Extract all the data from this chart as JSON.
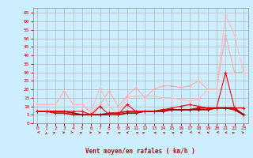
{
  "title": "",
  "xlabel": "Vent moyen/en rafales ( km/h )",
  "bg_color": "#cceeff",
  "grid_color": "#aaaaaa",
  "xlim": [
    -0.5,
    23.5
  ],
  "ylim": [
    0,
    68
  ],
  "yticks": [
    0,
    5,
    10,
    15,
    20,
    25,
    30,
    35,
    40,
    45,
    50,
    55,
    60,
    65
  ],
  "xticks": [
    0,
    1,
    2,
    3,
    4,
    5,
    6,
    7,
    8,
    9,
    10,
    11,
    12,
    13,
    14,
    15,
    16,
    17,
    18,
    19,
    20,
    21,
    22,
    23
  ],
  "series": [
    {
      "x": [
        0,
        1,
        2,
        3,
        4,
        5,
        6,
        7,
        8,
        9,
        10,
        11,
        12,
        13,
        14,
        15,
        16,
        17,
        18,
        19,
        20,
        21,
        22,
        23
      ],
      "y": [
        11,
        11,
        11,
        19,
        11,
        11,
        6,
        11,
        19,
        10,
        16,
        21,
        15,
        20,
        22,
        22,
        21,
        22,
        25,
        20,
        20,
        52,
        30,
        30
      ],
      "color": "#ffaaaa",
      "lw": 0.8,
      "marker": "+"
    },
    {
      "x": [
        0,
        1,
        2,
        3,
        4,
        5,
        6,
        7,
        8,
        9,
        10,
        11,
        12,
        13,
        14,
        15,
        16,
        17,
        18,
        19,
        20,
        21,
        22,
        23
      ],
      "y": [
        11,
        11,
        11,
        19,
        11,
        11,
        7,
        21,
        10,
        6,
        15,
        16,
        16,
        16,
        15,
        15,
        14,
        13,
        14,
        20,
        20,
        64,
        52,
        30
      ],
      "color": "#ffbbbb",
      "lw": 0.8,
      "marker": "+"
    },
    {
      "x": [
        0,
        1,
        2,
        3,
        4,
        5,
        6,
        7,
        8,
        9,
        10,
        11,
        12,
        13,
        14,
        15,
        16,
        17,
        18,
        19,
        20,
        21,
        22,
        23
      ],
      "y": [
        7,
        7,
        6,
        6,
        5,
        5,
        5,
        5,
        6,
        6,
        7,
        7,
        7,
        7,
        8,
        8,
        8,
        8,
        9,
        9,
        9,
        9,
        8,
        5
      ],
      "color": "#cc0000",
      "lw": 1.2,
      "marker": "+"
    },
    {
      "x": [
        0,
        1,
        2,
        3,
        4,
        5,
        6,
        7,
        8,
        9,
        10,
        11,
        12,
        13,
        14,
        15,
        16,
        17,
        18,
        19,
        20,
        21,
        22,
        23
      ],
      "y": [
        7,
        7,
        7,
        7,
        6,
        5,
        5,
        5,
        5,
        5,
        6,
        6,
        7,
        7,
        7,
        8,
        8,
        8,
        8,
        8,
        9,
        9,
        9,
        5
      ],
      "color": "#990000",
      "lw": 1.2,
      "marker": "+"
    },
    {
      "x": [
        0,
        1,
        2,
        3,
        4,
        5,
        6,
        7,
        8,
        9,
        10,
        11,
        12,
        13,
        14,
        15,
        16,
        17,
        18,
        19,
        20,
        21,
        22,
        23
      ],
      "y": [
        7,
        7,
        7,
        7,
        7,
        7,
        5,
        10,
        5,
        5,
        11,
        7,
        7,
        7,
        8,
        9,
        10,
        11,
        10,
        9,
        9,
        30,
        9,
        9
      ],
      "color": "#ff0000",
      "lw": 0.8,
      "marker": "+"
    }
  ],
  "wind_arrows": [
    225,
    0,
    45,
    90,
    135,
    45,
    90,
    90,
    45,
    315,
    270,
    315,
    45,
    315,
    315,
    315,
    270,
    225,
    270,
    270,
    225,
    270,
    45,
    90
  ]
}
